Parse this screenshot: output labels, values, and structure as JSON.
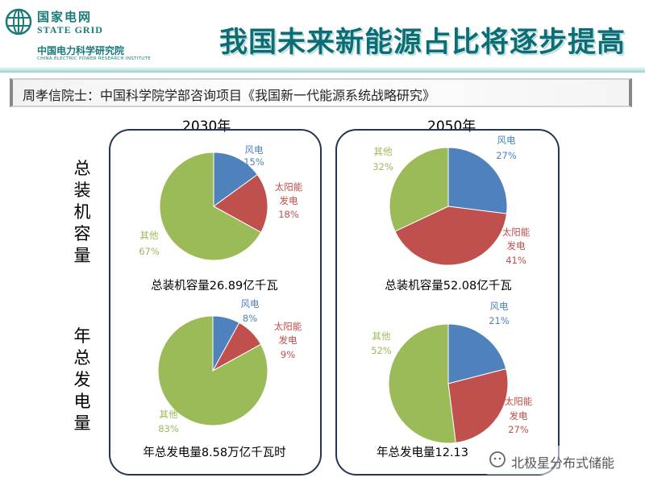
{
  "header": {
    "logo_cn": "国家电网",
    "logo_en": "STATE GRID",
    "institute_cn": "中国电力科学研究院",
    "institute_en": "CHINA ELECTRIC POWER RESEARCH INSTITUTE",
    "title": "我国未来新能源占比将逐步提高"
  },
  "subtitle": "周孝信院士：中国科学院学部咨询项目《我国新一代能源系统战略研究》",
  "years": [
    "2030年",
    "2050年"
  ],
  "row_labels": [
    "总装机容量",
    "年总发电量"
  ],
  "colors": {
    "wind": "#4f81bd",
    "solar": "#c0504d",
    "other": "#9bbb59"
  },
  "chart_data": [
    {
      "type": "pie",
      "year": "2030年",
      "metric": "总装机容量",
      "caption": "总装机容量26.89亿千瓦",
      "slices": [
        {
          "name": "风电",
          "value": 15,
          "label": "15%"
        },
        {
          "name": "太阳能发电",
          "value": 18,
          "label": "18%"
        },
        {
          "name": "其他",
          "value": 67,
          "label": "67%"
        }
      ]
    },
    {
      "type": "pie",
      "year": "2050年",
      "metric": "总装机容量",
      "caption": "总装机容量52.08亿千瓦",
      "slices": [
        {
          "name": "风电",
          "value": 27,
          "label": "27%"
        },
        {
          "name": "太阳能发电",
          "value": 41,
          "label": "41%"
        },
        {
          "name": "其他",
          "value": 32,
          "label": "32%"
        }
      ]
    },
    {
      "type": "pie",
      "year": "2030年",
      "metric": "年总发电量",
      "caption": "年总发电量8.58万亿千瓦时",
      "slices": [
        {
          "name": "风电",
          "value": 8,
          "label": "8%"
        },
        {
          "name": "太阳能发电",
          "value": 9,
          "label": "9%"
        },
        {
          "name": "其他",
          "value": 83,
          "label": "83%"
        }
      ]
    },
    {
      "type": "pie",
      "year": "2050年",
      "metric": "年总发电量",
      "caption": "年总发电量12.13",
      "slices": [
        {
          "name": "风电",
          "value": 21,
          "label": "21%"
        },
        {
          "name": "太阳能发电",
          "value": 27,
          "label": "27%"
        },
        {
          "name": "其他",
          "value": 52,
          "label": "52%"
        }
      ]
    }
  ],
  "watermark": "北极星分布式储能"
}
